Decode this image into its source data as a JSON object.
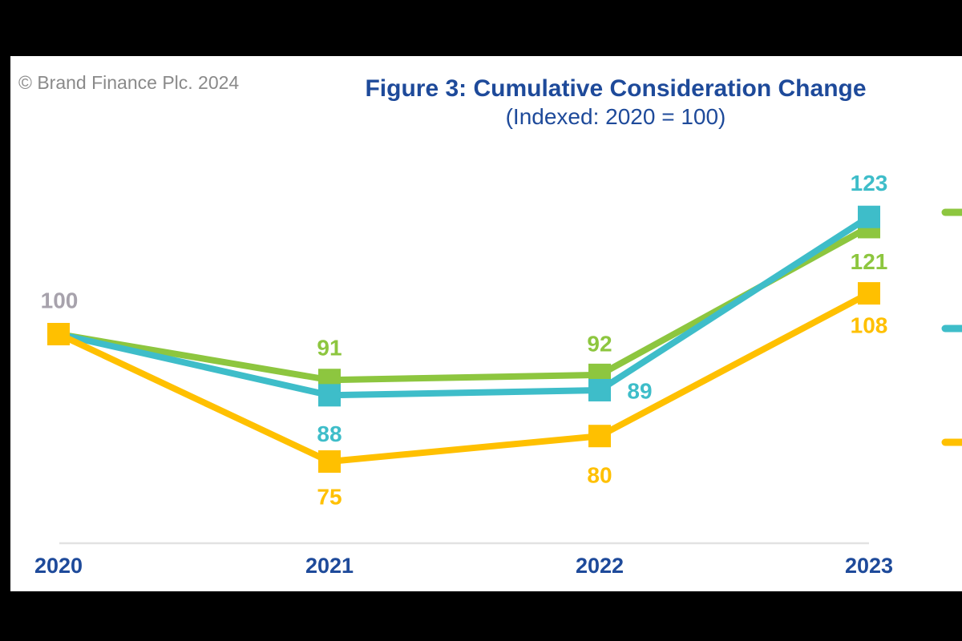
{
  "page": {
    "copyright": "© Brand Finance Plc. 2024",
    "title": "Figure 3: Cumulative Consideration Change",
    "subtitle": "(Indexed: 2020 = 100)"
  },
  "colors": {
    "canvas": "#ffffff",
    "letterbox": "#000000",
    "title_navy": "#1e4a9a",
    "axis_label_navy": "#1e4a9a",
    "copyright_gray": "#8a8a8a",
    "start_label_gray": "#a7a2ac",
    "axis_line_gray": "#e2e2e2",
    "green": "#8dc63f",
    "teal": "#3ebdc9",
    "yellow": "#ffc000"
  },
  "chart_data": {
    "type": "line",
    "title": "Figure 3: Cumulative Consideration Change",
    "subtitle": "(Indexed: 2020 = 100)",
    "categories": [
      "2020",
      "2021",
      "2022",
      "2023"
    ],
    "baseline_value": 100,
    "series": [
      {
        "name": "green",
        "color": "#8dc63f",
        "values": [
          100,
          91,
          92,
          121
        ],
        "point_labels": [
          "",
          "91",
          "92",
          "121"
        ]
      },
      {
        "name": "teal",
        "color": "#3ebdc9",
        "values": [
          100,
          88,
          89,
          123
        ],
        "point_labels": [
          "",
          "88",
          "89",
          "123"
        ]
      },
      {
        "name": "yellow",
        "color": "#ffc000",
        "values": [
          100,
          75,
          80,
          108
        ],
        "point_labels": [
          "100",
          "75",
          "80",
          "108"
        ]
      }
    ],
    "shared_start_label": "100",
    "marker": "square",
    "grid": false,
    "ylabel": "",
    "xlabel": "",
    "legend_position": "right-edge-cropped",
    "legend": [
      {
        "series": "green",
        "color": "#8dc63f",
        "label": ""
      },
      {
        "series": "teal",
        "color": "#3ebdc9",
        "label": ""
      },
      {
        "series": "yellow",
        "color": "#ffc000",
        "label": ""
      }
    ]
  }
}
